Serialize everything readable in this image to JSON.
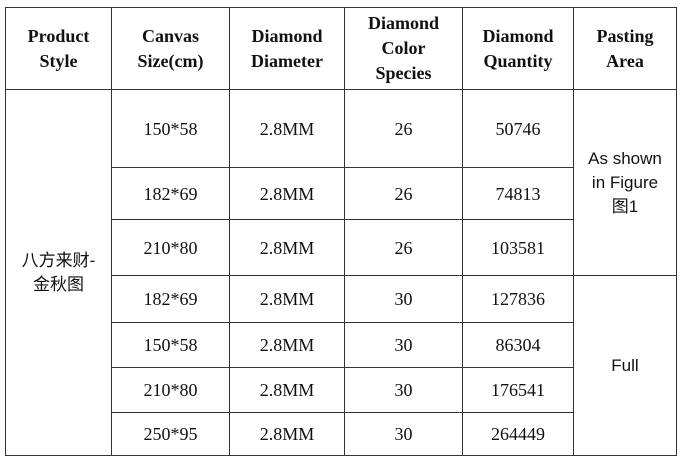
{
  "table": {
    "headers": [
      [
        "Product",
        "Style"
      ],
      [
        "Canvas",
        "Size(cm)"
      ],
      [
        "Diamond",
        "Diameter"
      ],
      [
        "Diamond",
        "Color",
        "Species"
      ],
      [
        "Diamond",
        "Quantity"
      ],
      [
        "Pasting",
        "Area"
      ]
    ],
    "product_style": [
      "八方来财-",
      "金秋图"
    ],
    "rows": [
      [
        "150*58",
        "2.8MM",
        26,
        50746
      ],
      [
        "182*69",
        "2.8MM",
        26,
        74813
      ],
      [
        "210*80",
        "2.8MM",
        26,
        103581
      ],
      [
        "182*69",
        "2.8MM",
        30,
        127836
      ],
      [
        "150*58",
        "2.8MM",
        30,
        86304
      ],
      [
        "210*80",
        "2.8MM",
        30,
        176541
      ],
      [
        "250*95",
        "2.8MM",
        30,
        264449
      ]
    ],
    "pasting_area": [
      [
        "As shown",
        "in Figure",
        "图1"
      ],
      [
        "Full"
      ]
    ]
  }
}
